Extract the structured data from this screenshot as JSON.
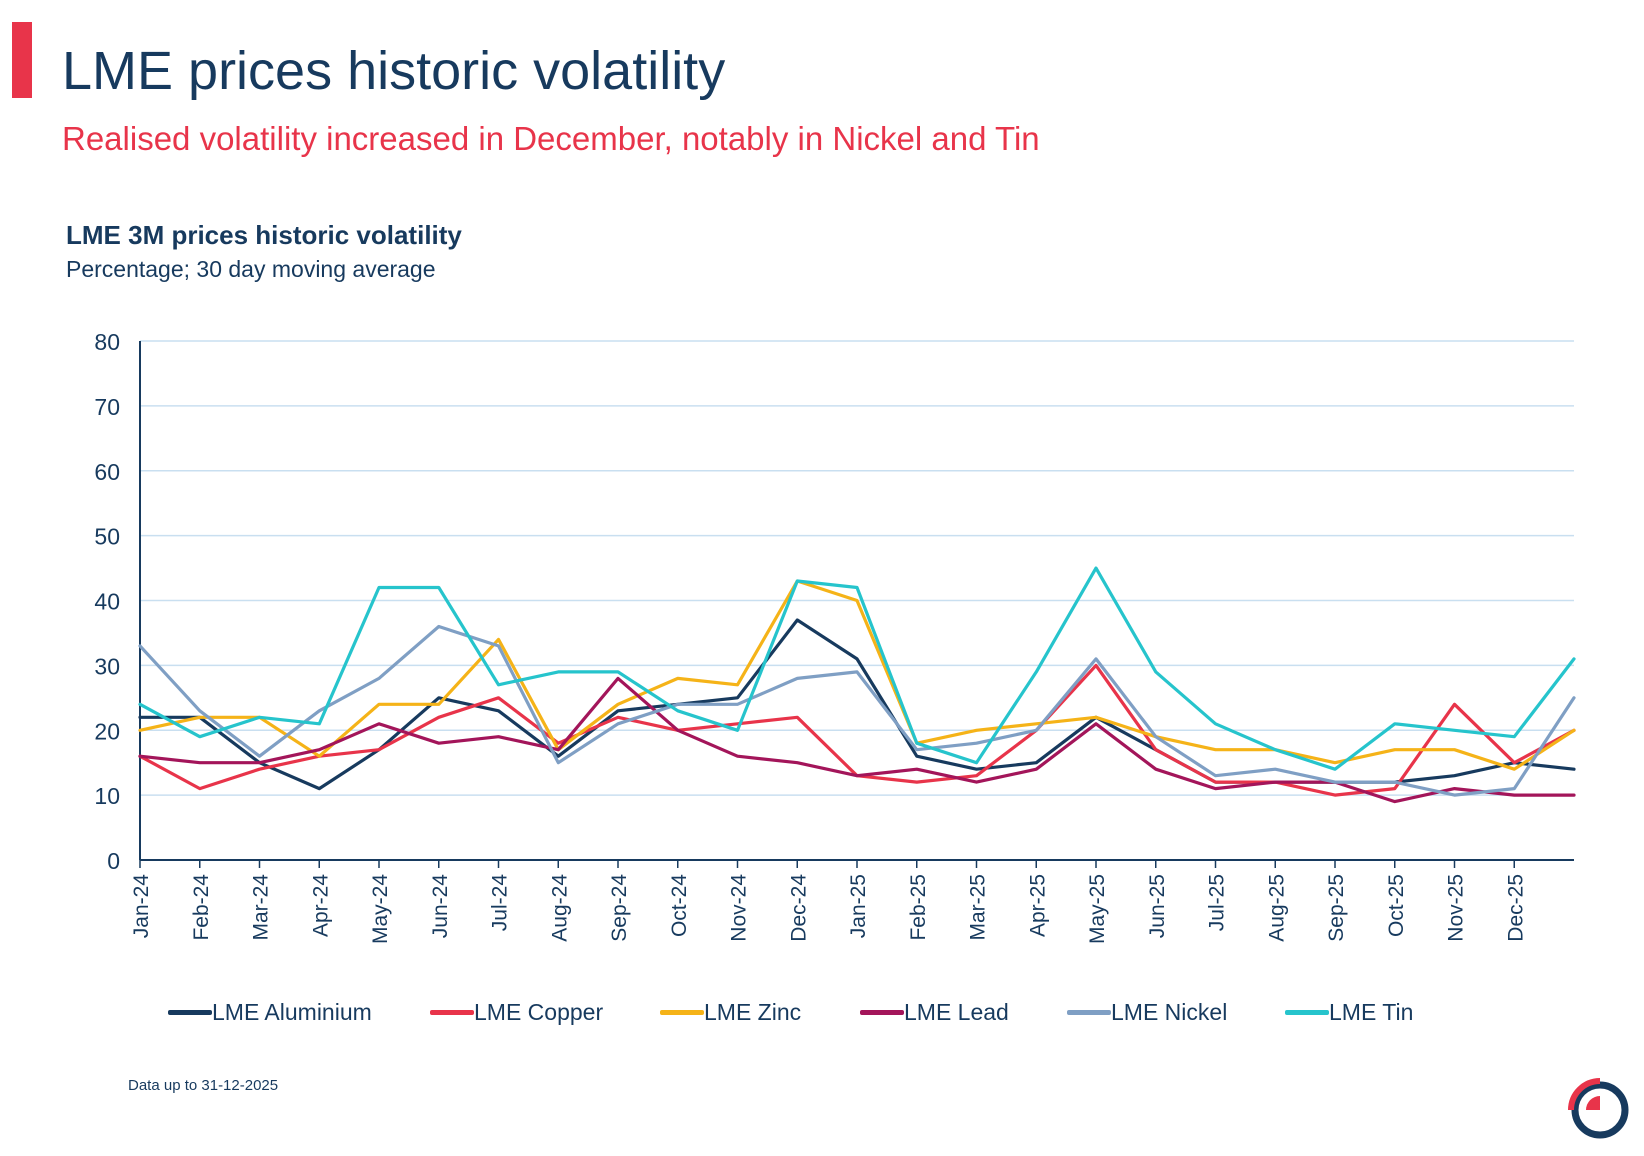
{
  "header": {
    "title": "LME prices historic volatility",
    "subtitle": "Realised volatility increased in December, notably in Nickel and Tin"
  },
  "footnote": "Data up to 31-12-2025",
  "colors": {
    "accent": "#e8344a",
    "navy": "#173a5e",
    "gridline": "#c9dff0"
  },
  "chart_data": {
    "type": "line",
    "title": "LME 3M prices historic volatility",
    "subtitle": "Percentage; 30 day moving average",
    "xlabel": "",
    "ylabel": "",
    "ylim": [
      0,
      80
    ],
    "yticks": [
      0,
      10,
      20,
      30,
      40,
      50,
      60,
      70,
      80
    ],
    "grid": true,
    "legend_position": "bottom",
    "x": [
      "Jan-24",
      "Feb-24",
      "Mar-24",
      "Apr-24",
      "May-24",
      "Jun-24",
      "Jul-24",
      "Aug-24",
      "Sep-24",
      "Oct-24",
      "Nov-24",
      "Dec-24",
      "Jan-25",
      "Feb-25",
      "Mar-25",
      "Apr-25",
      "May-25",
      "Jun-25",
      "Jul-25",
      "Aug-25",
      "Sep-25",
      "Oct-25",
      "Nov-25",
      "Dec-25"
    ],
    "series": [
      {
        "name": "LME Aluminium",
        "color": "#173a5e",
        "values": [
          22,
          22,
          15,
          11,
          17,
          25,
          23,
          16,
          23,
          24,
          25,
          37,
          31,
          16,
          14,
          15,
          22,
          17,
          12,
          12,
          12,
          12,
          13,
          15
        ],
        "end": 14
      },
      {
        "name": "LME Copper",
        "color": "#e8344a",
        "values": [
          16,
          11,
          14,
          16,
          17,
          22,
          25,
          18,
          22,
          20,
          21,
          22,
          13,
          12,
          13,
          20,
          30,
          17,
          12,
          12,
          10,
          11,
          24,
          15
        ],
        "end": 20
      },
      {
        "name": "LME Zinc",
        "color": "#f5b318",
        "values": [
          20,
          22,
          22,
          16,
          24,
          24,
          34,
          17,
          24,
          28,
          27,
          43,
          40,
          18,
          20,
          21,
          22,
          19,
          17,
          17,
          15,
          17,
          17,
          14
        ],
        "end": 20
      },
      {
        "name": "LME Lead",
        "color": "#a3155a",
        "values": [
          16,
          15,
          15,
          17,
          21,
          18,
          19,
          17,
          28,
          20,
          16,
          15,
          13,
          14,
          12,
          14,
          21,
          14,
          11,
          12,
          12,
          9,
          11,
          10
        ],
        "end": 10
      },
      {
        "name": "LME Nickel",
        "color": "#7f9fc4",
        "values": [
          33,
          23,
          16,
          23,
          28,
          36,
          33,
          15,
          21,
          24,
          24,
          28,
          29,
          17,
          18,
          20,
          31,
          19,
          13,
          14,
          12,
          12,
          10,
          11
        ],
        "end": 25
      },
      {
        "name": "LME Tin",
        "color": "#26c4cc",
        "values": [
          24,
          19,
          22,
          21,
          42,
          42,
          27,
          29,
          29,
          23,
          20,
          43,
          42,
          18,
          15,
          29,
          45,
          29,
          21,
          17,
          14,
          21,
          20,
          19
        ],
        "end": 31
      }
    ]
  }
}
